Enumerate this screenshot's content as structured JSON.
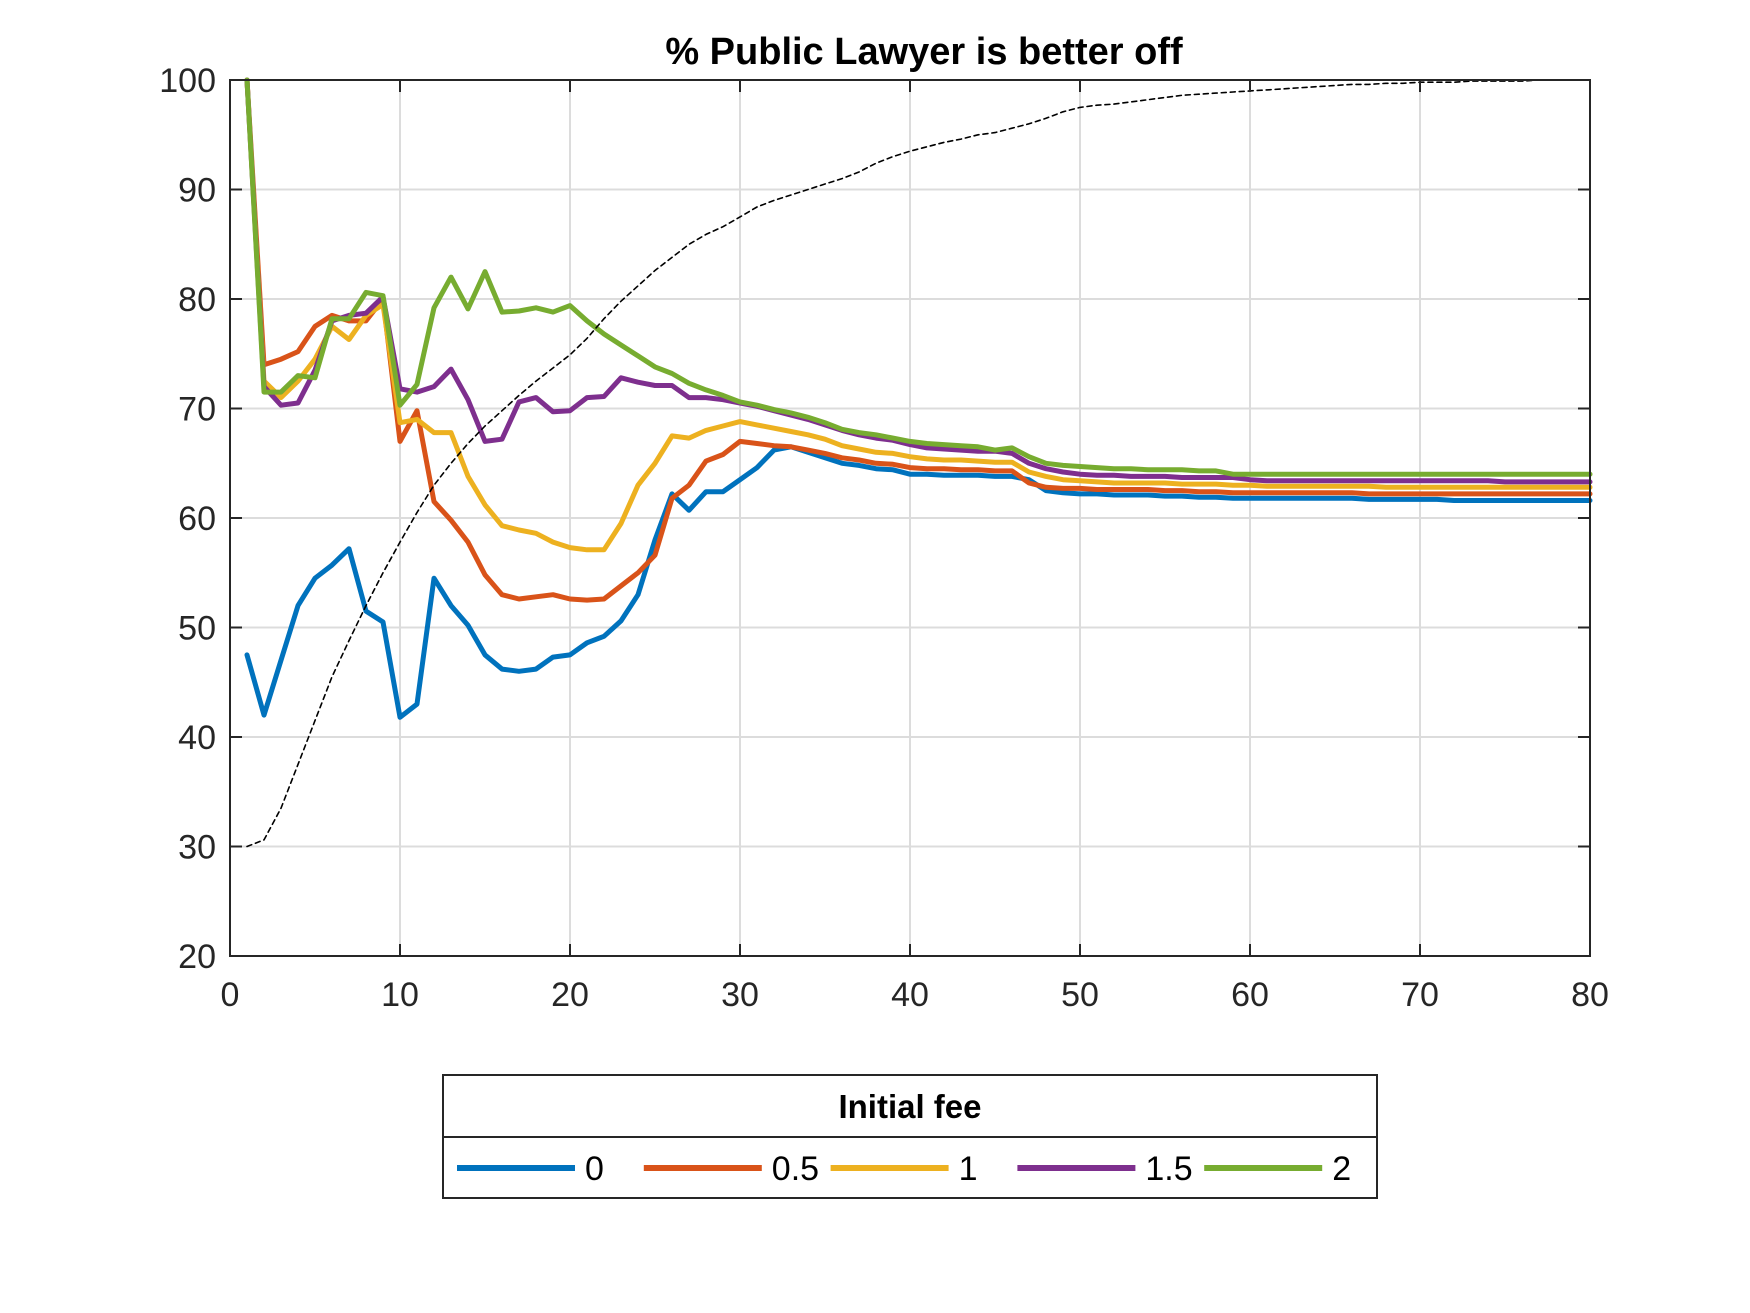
{
  "chart_data": {
    "type": "line",
    "title": "% Public Lawyer is better off",
    "xlabel": "",
    "ylabel": "",
    "xlim": [
      0,
      80
    ],
    "ylim": [
      20,
      100
    ],
    "xticks": [
      0,
      10,
      20,
      30,
      40,
      50,
      60,
      70,
      80
    ],
    "yticks": [
      20,
      30,
      40,
      50,
      60,
      70,
      80,
      90,
      100
    ],
    "xtick_labels": [
      "0",
      "10",
      "20",
      "30",
      "40",
      "50",
      "60",
      "70",
      "80"
    ],
    "ytick_labels": [
      "20",
      "30",
      "40",
      "50",
      "60",
      "70",
      "80",
      "90",
      "100"
    ],
    "grid": true,
    "legend_title": "Initial fee",
    "legend_position": "bottom",
    "x": [
      1,
      2,
      3,
      4,
      5,
      6,
      7,
      8,
      9,
      10,
      11,
      12,
      13,
      14,
      15,
      16,
      17,
      18,
      19,
      20,
      21,
      22,
      23,
      24,
      25,
      26,
      27,
      28,
      29,
      30,
      31,
      32,
      33,
      34,
      35,
      36,
      37,
      38,
      39,
      40,
      41,
      42,
      43,
      44,
      45,
      46,
      47,
      48,
      49,
      50,
      51,
      52,
      53,
      54,
      55,
      56,
      57,
      58,
      59,
      60,
      61,
      62,
      63,
      64,
      65,
      66,
      67,
      68,
      69,
      70,
      71,
      72,
      73,
      74,
      75,
      76,
      77,
      78,
      79,
      80
    ],
    "series": [
      {
        "name": "0",
        "color": "#0072BD",
        "values": [
          47.5,
          42,
          47,
          52,
          54.5,
          55.7,
          57.2,
          51.5,
          50.5,
          41.8,
          43,
          54.5,
          52,
          50.2,
          47.5,
          46.2,
          46,
          46.2,
          47.3,
          47.5,
          48.6,
          49.2,
          50.6,
          53,
          58,
          62.2,
          60.7,
          62.4,
          62.4,
          63.5,
          64.6,
          66.2,
          66.5,
          66,
          65.5,
          65,
          64.8,
          64.5,
          64.4,
          64,
          64,
          63.9,
          63.9,
          63.9,
          63.8,
          63.8,
          63.5,
          62.5,
          62.3,
          62.2,
          62.2,
          62.1,
          62.1,
          62.1,
          62,
          62,
          61.9,
          61.9,
          61.8,
          61.8,
          61.8,
          61.8,
          61.8,
          61.8,
          61.8,
          61.8,
          61.7,
          61.7,
          61.7,
          61.7,
          61.7,
          61.6,
          61.6,
          61.6,
          61.6,
          61.6,
          61.6,
          61.6,
          61.6,
          61.6
        ]
      },
      {
        "name": "0.5",
        "color": "#D95319",
        "values": [
          100,
          74,
          74.5,
          75.2,
          77.5,
          78.5,
          78,
          78,
          80,
          67,
          69.8,
          61.5,
          59.8,
          57.8,
          54.8,
          53,
          52.6,
          52.8,
          53,
          52.6,
          52.5,
          52.6,
          53.8,
          55,
          56.6,
          61.8,
          63,
          65.2,
          65.8,
          67,
          66.8,
          66.6,
          66.5,
          66.2,
          65.9,
          65.5,
          65.3,
          65,
          64.9,
          64.6,
          64.5,
          64.5,
          64.4,
          64.4,
          64.3,
          64.3,
          63.2,
          62.8,
          62.7,
          62.7,
          62.6,
          62.6,
          62.6,
          62.6,
          62.5,
          62.5,
          62.4,
          62.4,
          62.3,
          62.3,
          62.3,
          62.3,
          62.3,
          62.3,
          62.3,
          62.3,
          62.2,
          62.2,
          62.2,
          62.2,
          62.2,
          62.2,
          62.2,
          62.2,
          62.2,
          62.2,
          62.2,
          62.2,
          62.2,
          62.2
        ]
      },
      {
        "name": "1",
        "color": "#EDB120",
        "values": [
          100,
          72.5,
          71,
          72.5,
          74.5,
          77.5,
          76.3,
          78.5,
          79.5,
          68.7,
          69,
          67.8,
          67.8,
          63.8,
          61.2,
          59.3,
          58.9,
          58.6,
          57.8,
          57.3,
          57.1,
          57.1,
          59.5,
          63,
          65,
          67.5,
          67.3,
          68,
          68.4,
          68.8,
          68.5,
          68.2,
          67.9,
          67.6,
          67.2,
          66.6,
          66.3,
          66,
          65.9,
          65.6,
          65.4,
          65.3,
          65.3,
          65.2,
          65.1,
          65.1,
          64.2,
          63.8,
          63.5,
          63.4,
          63.3,
          63.2,
          63.2,
          63.2,
          63.2,
          63.1,
          63.1,
          63.1,
          63,
          63,
          62.9,
          62.9,
          62.9,
          62.9,
          62.9,
          62.9,
          62.9,
          62.8,
          62.8,
          62.8,
          62.8,
          62.8,
          62.8,
          62.8,
          62.8,
          62.8,
          62.8,
          62.8,
          62.8,
          62.8
        ]
      },
      {
        "name": "1.5",
        "color": "#7E2F8E",
        "values": [
          100,
          72,
          70.3,
          70.5,
          73.5,
          78,
          78.5,
          78.7,
          80.2,
          71.8,
          71.5,
          72,
          73.6,
          70.8,
          67,
          67.2,
          70.6,
          71,
          69.7,
          69.8,
          71,
          71.1,
          72.8,
          72.4,
          72.1,
          72.1,
          71,
          71,
          70.8,
          70.5,
          70.2,
          69.8,
          69.4,
          69,
          68.5,
          68,
          67.6,
          67.3,
          67.1,
          66.7,
          66.4,
          66.3,
          66.2,
          66.1,
          66.1,
          65.9,
          65,
          64.5,
          64.2,
          64,
          63.9,
          63.9,
          63.8,
          63.8,
          63.8,
          63.7,
          63.7,
          63.7,
          63.7,
          63.5,
          63.4,
          63.4,
          63.4,
          63.4,
          63.4,
          63.4,
          63.4,
          63.4,
          63.4,
          63.4,
          63.4,
          63.4,
          63.4,
          63.4,
          63.3,
          63.3,
          63.3,
          63.3,
          63.3,
          63.3
        ]
      },
      {
        "name": "2",
        "color": "#77AC30",
        "values": [
          100,
          71.5,
          71.5,
          73,
          72.8,
          78.2,
          78.2,
          80.6,
          80.3,
          70.3,
          72.2,
          79.2,
          82,
          79.1,
          82.5,
          78.8,
          78.9,
          79.2,
          78.8,
          79.4,
          78,
          76.8,
          75.8,
          74.8,
          73.8,
          73.2,
          72.3,
          71.7,
          71.2,
          70.6,
          70.3,
          69.9,
          69.6,
          69.2,
          68.7,
          68.1,
          67.8,
          67.6,
          67.3,
          67,
          66.8,
          66.7,
          66.6,
          66.5,
          66.2,
          66.4,
          65.6,
          65,
          64.8,
          64.7,
          64.6,
          64.5,
          64.5,
          64.4,
          64.4,
          64.4,
          64.3,
          64.3,
          64,
          64,
          64,
          64,
          64,
          64,
          64,
          64,
          64,
          64,
          64,
          64,
          64,
          64,
          64,
          64,
          64,
          64,
          64,
          64,
          64,
          64
        ]
      },
      {
        "name": "",
        "color": "#000000",
        "style": "dashed",
        "values": [
          30,
          30.6,
          33.5,
          37.5,
          41.5,
          45.5,
          48.8,
          52,
          55,
          57.8,
          60.5,
          63,
          65,
          66.8,
          68.4,
          69.8,
          71.2,
          72.5,
          73.7,
          74.9,
          76.4,
          78.2,
          79.8,
          81.2,
          82.6,
          83.8,
          85,
          85.9,
          86.6,
          87.5,
          88.4,
          89,
          89.5,
          90,
          90.5,
          91,
          91.6,
          92.4,
          93,
          93.5,
          93.9,
          94.3,
          94.6,
          95,
          95.2,
          95.6,
          96,
          96.5,
          97.1,
          97.5,
          97.7,
          97.8,
          98,
          98.2,
          98.4,
          98.6,
          98.7,
          98.8,
          98.9,
          99,
          99.1,
          99.2,
          99.3,
          99.4,
          99.5,
          99.6,
          99.6,
          99.7,
          99.7,
          99.8,
          99.8,
          99.8,
          99.9,
          99.9,
          99.9,
          99.9,
          100,
          100,
          100,
          100
        ]
      }
    ]
  }
}
